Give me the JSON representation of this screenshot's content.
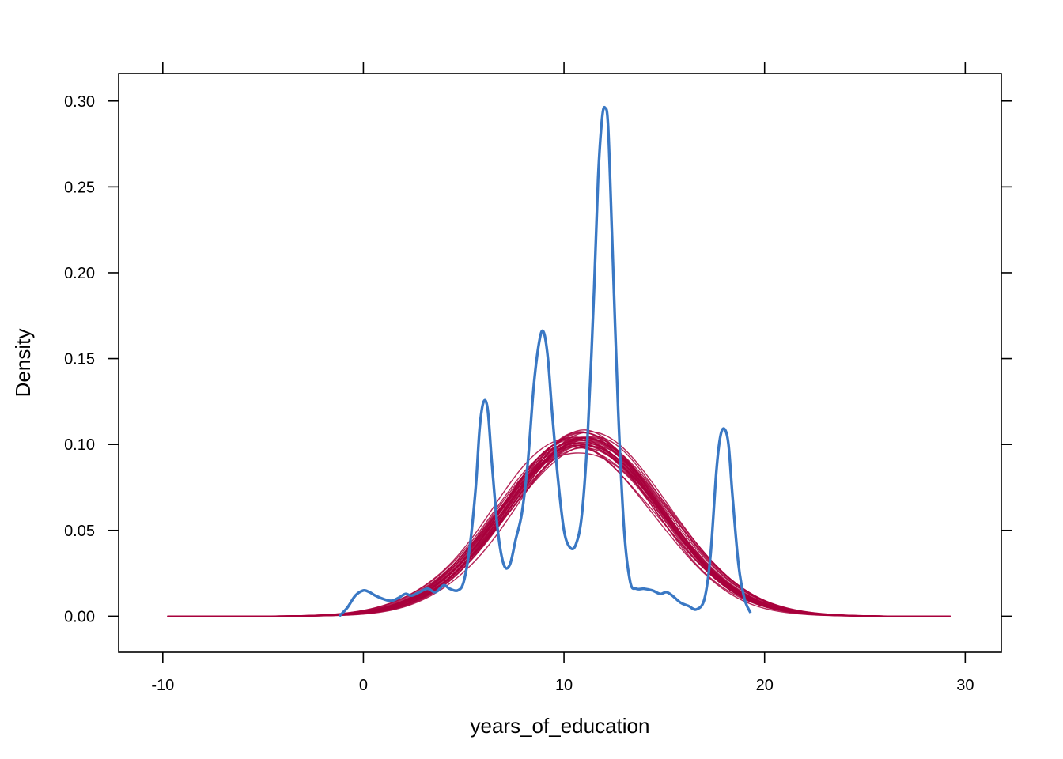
{
  "chart_data": {
    "type": "line",
    "title": "",
    "xlabel": "years_of_education",
    "ylabel": "Density",
    "xlim": [
      -12.2,
      31.8
    ],
    "ylim": [
      -0.021,
      0.316
    ],
    "xticks": [
      -10,
      0,
      10,
      20,
      30
    ],
    "xtick_labels": [
      "-10",
      "0",
      "10",
      "20",
      "30"
    ],
    "yticks": [
      0.0,
      0.05,
      0.1,
      0.15,
      0.2,
      0.25,
      0.3
    ],
    "ytick_labels": [
      "0.00",
      "0.05",
      "0.10",
      "0.15",
      "0.20",
      "0.25",
      "0.30"
    ],
    "grid": false,
    "legend": "none",
    "colors": {
      "observed": "#3a78c4",
      "imputed": "#a8003c"
    },
    "series": [
      {
        "role": "observed",
        "x": [
          -1.2,
          -0.8,
          -0.4,
          0.0,
          0.3,
          0.6,
          1.0,
          1.4,
          1.8,
          2.1,
          2.4,
          2.8,
          3.2,
          3.6,
          4.0,
          4.3,
          4.7,
          5.0,
          5.3,
          5.6,
          5.8,
          6.0,
          6.2,
          6.4,
          6.7,
          7.0,
          7.3,
          7.6,
          7.9,
          8.2,
          8.5,
          8.8,
          9.0,
          9.2,
          9.4,
          9.7,
          10.0,
          10.3,
          10.6,
          10.9,
          11.2,
          11.5,
          11.7,
          11.9,
          12.05,
          12.2,
          12.4,
          12.7,
          13.0,
          13.3,
          13.6,
          14.0,
          14.4,
          14.8,
          15.1,
          15.4,
          15.8,
          16.2,
          16.6,
          17.0,
          17.3,
          17.6,
          17.8,
          18.0,
          18.2,
          18.4,
          18.7,
          19.0,
          19.3
        ],
        "y": [
          0.0,
          0.005,
          0.012,
          0.015,
          0.014,
          0.012,
          0.01,
          0.009,
          0.011,
          0.013,
          0.012,
          0.014,
          0.016,
          0.014,
          0.018,
          0.016,
          0.015,
          0.02,
          0.04,
          0.075,
          0.11,
          0.125,
          0.12,
          0.09,
          0.05,
          0.03,
          0.03,
          0.045,
          0.06,
          0.09,
          0.135,
          0.162,
          0.165,
          0.15,
          0.12,
          0.08,
          0.05,
          0.04,
          0.042,
          0.06,
          0.11,
          0.19,
          0.255,
          0.29,
          0.296,
          0.285,
          0.22,
          0.12,
          0.05,
          0.02,
          0.016,
          0.016,
          0.015,
          0.013,
          0.014,
          0.012,
          0.008,
          0.006,
          0.004,
          0.01,
          0.035,
          0.085,
          0.105,
          0.109,
          0.1,
          0.07,
          0.03,
          0.01,
          0.002
        ]
      },
      {
        "role": "imputed",
        "count": 30,
        "approx_mean": 11.0,
        "approx_sd": 3.9,
        "approx_peak": 0.102,
        "x_range": [
          -9.5,
          29.0
        ]
      }
    ]
  }
}
